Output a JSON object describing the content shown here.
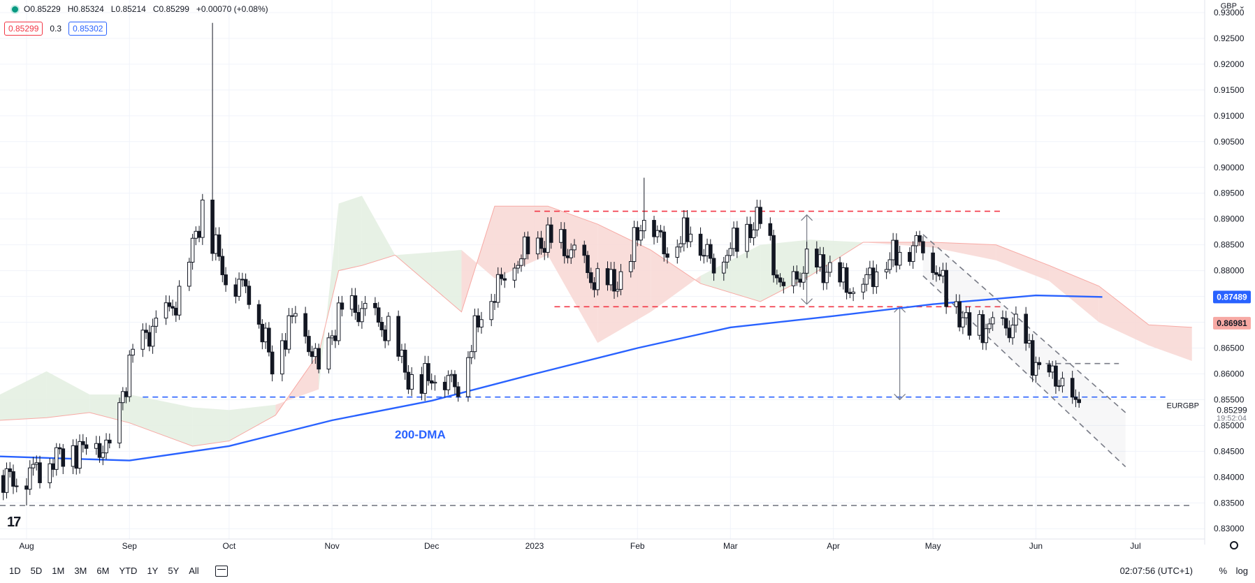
{
  "header": {
    "open": "O0.85229",
    "high": "H0.85324",
    "low": "L0.85214",
    "close": "C0.85299",
    "change": "+0.00070 (+0.08%)",
    "bid": "0.85299",
    "spread": "0.3",
    "ask": "0.85302",
    "currency": "GBP"
  },
  "bottom": {
    "ranges": [
      "1D",
      "5D",
      "1M",
      "3M",
      "6M",
      "YTD",
      "1Y",
      "5Y",
      "All"
    ],
    "time": "02:07:56 (UTC+1)",
    "pct": "%",
    "log": "log"
  },
  "colors": {
    "up": "#ffffff",
    "down": "#131722",
    "ma": "#2962ff",
    "cloud_red": "#f8d7d4",
    "cloud_green": "#e3efe1",
    "red_dash": "#f23645",
    "blue_dash": "#2962ff"
  },
  "chart_data": {
    "type": "candlestick",
    "symbol": "EURGBP",
    "price_scale": [
      "0.83000",
      "0.83500",
      "0.84000",
      "0.84500",
      "0.85000",
      "0.85500",
      "0.86000",
      "0.86500",
      "0.87000",
      "0.87500",
      "0.88000",
      "0.88500",
      "0.89000",
      "0.89500",
      "0.90000",
      "0.90500",
      "0.91000",
      "0.91500",
      "0.92000",
      "0.92500",
      "0.93000"
    ],
    "ylim": [
      0.828,
      0.93
    ],
    "x_labels": [
      {
        "label": "Aug",
        "date": "2022-08-01"
      },
      {
        "label": "Sep",
        "date": "2022-09-01"
      },
      {
        "label": "Oct",
        "date": "2022-10-01"
      },
      {
        "label": "Nov",
        "date": "2022-11-01"
      },
      {
        "label": "Dec",
        "date": "2022-12-01"
      },
      {
        "label": "2023",
        "date": "2023-01-01"
      },
      {
        "label": "Feb",
        "date": "2023-02-01"
      },
      {
        "label": "Mar",
        "date": "2023-03-01"
      },
      {
        "label": "Apr",
        "date": "2023-04-01"
      },
      {
        "label": "May",
        "date": "2023-05-01"
      },
      {
        "label": "Jun",
        "date": "2023-06-01"
      },
      {
        "label": "Jul",
        "date": "2023-07-01"
      }
    ],
    "xlim": [
      "2022-07-24",
      "2023-07-21"
    ],
    "closes": [
      {
        "date": "2022-07-22",
        "close": 0.8403
      },
      {
        "date": "2022-07-29",
        "close": 0.8395
      },
      {
        "date": "2022-08-05",
        "close": 0.8422
      },
      {
        "date": "2022-08-12",
        "close": 0.8445
      },
      {
        "date": "2022-08-19",
        "close": 0.8455
      },
      {
        "date": "2022-08-26",
        "close": 0.8455
      },
      {
        "date": "2022-09-02",
        "close": 0.864
      },
      {
        "date": "2022-09-09",
        "close": 0.8695
      },
      {
        "date": "2022-09-16",
        "close": 0.8745
      },
      {
        "date": "2022-09-23",
        "close": 0.892
      },
      {
        "date": "2022-09-30",
        "close": 0.8785
      },
      {
        "date": "2022-10-07",
        "close": 0.8765
      },
      {
        "date": "2022-10-14",
        "close": 0.862
      },
      {
        "date": "2022-10-21",
        "close": 0.872
      },
      {
        "date": "2022-10-28",
        "close": 0.861
      },
      {
        "date": "2022-11-04",
        "close": 0.8725
      },
      {
        "date": "2022-11-11",
        "close": 0.872
      },
      {
        "date": "2022-11-18",
        "close": 0.868
      },
      {
        "date": "2022-11-25",
        "close": 0.858
      },
      {
        "date": "2022-12-02",
        "close": 0.8595
      },
      {
        "date": "2022-12-09",
        "close": 0.858
      },
      {
        "date": "2022-12-16",
        "close": 0.872
      },
      {
        "date": "2022-12-23",
        "close": 0.879
      },
      {
        "date": "2022-12-30",
        "close": 0.8845
      },
      {
        "date": "2023-01-06",
        "close": 0.886
      },
      {
        "date": "2023-01-13",
        "close": 0.883
      },
      {
        "date": "2023-01-20",
        "close": 0.877
      },
      {
        "date": "2023-01-27",
        "close": 0.878
      },
      {
        "date": "2023-02-03",
        "close": 0.8905
      },
      {
        "date": "2023-02-10",
        "close": 0.884
      },
      {
        "date": "2023-02-17",
        "close": 0.888
      },
      {
        "date": "2023-02-24",
        "close": 0.881
      },
      {
        "date": "2023-03-03",
        "close": 0.886
      },
      {
        "date": "2023-03-10",
        "close": 0.89
      },
      {
        "date": "2023-03-17",
        "close": 0.875
      },
      {
        "date": "2023-03-24",
        "close": 0.881
      },
      {
        "date": "2023-03-31",
        "close": 0.88
      },
      {
        "date": "2023-04-07",
        "close": 0.876
      },
      {
        "date": "2023-04-14",
        "close": 0.88
      },
      {
        "date": "2023-04-21",
        "close": 0.884
      },
      {
        "date": "2023-04-28",
        "close": 0.8855
      },
      {
        "date": "2023-05-05",
        "close": 0.876
      },
      {
        "date": "2023-05-12",
        "close": 0.8685
      },
      {
        "date": "2023-05-19",
        "close": 0.869
      },
      {
        "date": "2023-05-26",
        "close": 0.869
      },
      {
        "date": "2023-06-02",
        "close": 0.8605
      },
      {
        "date": "2023-06-09",
        "close": 0.8585
      },
      {
        "date": "2023-06-14",
        "close": 0.85299
      }
    ],
    "notable_extremes": [
      {
        "date": "2022-09-26",
        "high": 0.928
      },
      {
        "date": "2022-08-01",
        "low": 0.8345
      },
      {
        "date": "2023-02-03",
        "high": 0.898
      }
    ],
    "ma_200": [
      {
        "date": "2022-07-24",
        "value": 0.844
      },
      {
        "date": "2022-09-01",
        "value": 0.8432
      },
      {
        "date": "2022-10-01",
        "value": 0.846
      },
      {
        "date": "2022-11-01",
        "value": 0.851
      },
      {
        "date": "2022-12-01",
        "value": 0.8548
      },
      {
        "date": "2023-01-01",
        "value": 0.86
      },
      {
        "date": "2023-02-01",
        "value": 0.865
      },
      {
        "date": "2023-03-01",
        "value": 0.869
      },
      {
        "date": "2023-04-01",
        "value": 0.8712
      },
      {
        "date": "2023-05-01",
        "value": 0.8735
      },
      {
        "date": "2023-06-01",
        "value": 0.8752
      },
      {
        "date": "2023-06-21",
        "value": 0.8749
      }
    ],
    "ichimoku_cloud": [
      {
        "date": "2022-07-24",
        "a": 0.856,
        "b": 0.851
      },
      {
        "date": "2022-08-07",
        "a": 0.8605,
        "b": 0.8515
      },
      {
        "date": "2022-08-20",
        "a": 0.856,
        "b": 0.8525
      },
      {
        "date": "2022-09-01",
        "a": 0.856,
        "b": 0.8505
      },
      {
        "date": "2022-09-20",
        "a": 0.8535,
        "b": 0.846
      },
      {
        "date": "2022-10-01",
        "a": 0.853,
        "b": 0.847
      },
      {
        "date": "2022-10-15",
        "a": 0.854,
        "b": 0.852
      },
      {
        "date": "2022-10-28",
        "a": 0.857,
        "b": 0.864
      },
      {
        "date": "2022-11-03",
        "a": 0.893,
        "b": 0.88
      },
      {
        "date": "2022-11-10",
        "a": 0.8945,
        "b": 0.881
      },
      {
        "date": "2022-11-20",
        "a": 0.883,
        "b": 0.883
      },
      {
        "date": "2022-12-10",
        "a": 0.884,
        "b": 0.872
      },
      {
        "date": "2022-12-20",
        "a": 0.8785,
        "b": 0.8925
      },
      {
        "date": "2023-01-05",
        "a": 0.883,
        "b": 0.8925
      },
      {
        "date": "2023-01-20",
        "a": 0.866,
        "b": 0.889
      },
      {
        "date": "2023-02-05",
        "a": 0.872,
        "b": 0.884
      },
      {
        "date": "2023-02-20",
        "a": 0.879,
        "b": 0.8775
      },
      {
        "date": "2023-03-10",
        "a": 0.885,
        "b": 0.874
      },
      {
        "date": "2023-03-25",
        "a": 0.886,
        "b": 0.879
      },
      {
        "date": "2023-04-10",
        "a": 0.8855,
        "b": 0.8855
      },
      {
        "date": "2023-05-01",
        "a": 0.8845,
        "b": 0.8855
      },
      {
        "date": "2023-05-20",
        "a": 0.882,
        "b": 0.885
      },
      {
        "date": "2023-06-05",
        "a": 0.878,
        "b": 0.881
      },
      {
        "date": "2023-06-20",
        "a": 0.87,
        "b": 0.877
      },
      {
        "date": "2023-07-05",
        "a": 0.8655,
        "b": 0.8695
      },
      {
        "date": "2023-07-18",
        "a": 0.8625,
        "b": 0.869
      }
    ],
    "horizontal_lines": [
      {
        "price": 0.8915,
        "from": "2023-01-01",
        "to": "2023-05-22",
        "color": "red",
        "style": "dashed"
      },
      {
        "price": 0.873,
        "from": "2023-01-07",
        "to": "2023-05-22",
        "color": "red",
        "style": "dashed"
      },
      {
        "price": 0.8555,
        "from": "2022-09-05",
        "to": "2023-07-10",
        "color": "blue",
        "style": "dashed"
      },
      {
        "price": 0.8345,
        "from": "2022-07-24",
        "to": "2023-07-18",
        "color": "grey",
        "style": "dashed"
      },
      {
        "price": 0.862,
        "from": "2023-06-01",
        "to": "2023-06-26",
        "color": "grey",
        "style": "dashed"
      }
    ],
    "channel": {
      "upper": [
        {
          "date": "2023-04-28",
          "price": 0.887
        },
        {
          "date": "2023-06-28",
          "price": 0.8525
        }
      ],
      "lower": [
        {
          "date": "2023-04-28",
          "price": 0.879
        },
        {
          "date": "2023-06-28",
          "price": 0.842
        }
      ]
    },
    "measure_arrows": [
      {
        "date": "2023-03-24",
        "from": 0.8908,
        "to": 0.8735
      },
      {
        "date": "2023-04-21",
        "from": 0.873,
        "to": 0.855
      }
    ],
    "annotation": "200-DMA",
    "badges": [
      {
        "text": "0.87489",
        "value": 0.87489,
        "color": "#2962ff"
      },
      {
        "text": "0.86981",
        "value": 0.86981,
        "color": "#f7a9a4"
      },
      {
        "text": "0.85299",
        "value": 0.85299,
        "color": "#ffffff"
      }
    ],
    "symbol_label": "EURGBP",
    "countdown": "19:52:04"
  }
}
